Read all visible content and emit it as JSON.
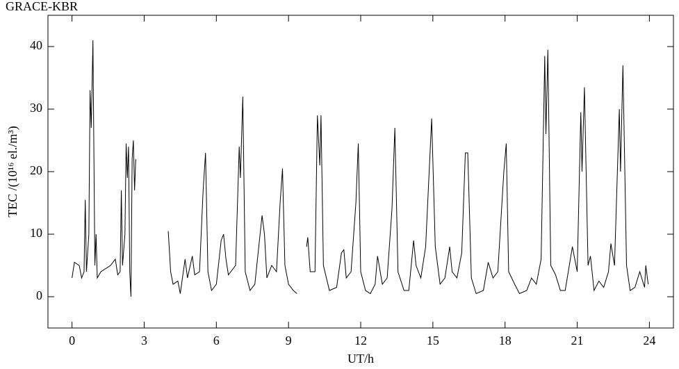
{
  "chart_data": {
    "type": "line",
    "title": "GRACE-KBR",
    "xlabel": "UT/h",
    "ylabel": "TEC /(10¹⁶ el./m³)",
    "xlim": [
      -1,
      25
    ],
    "ylim": [
      -5,
      45
    ],
    "xticks": [
      0,
      3,
      6,
      9,
      12,
      15,
      18,
      21,
      24
    ],
    "yticks": [
      0,
      10,
      20,
      30,
      40
    ],
    "grid": false,
    "x": [
      0,
      0.1,
      0.3,
      0.4,
      0.5,
      0.55,
      0.6,
      0.7,
      0.75,
      0.8,
      0.87,
      0.95,
      1.0,
      1.05,
      1.2,
      1.4,
      1.6,
      1.8,
      1.9,
      2.0,
      2.05,
      2.1,
      2.2,
      2.25,
      2.3,
      2.35,
      2.4,
      2.45,
      2.5,
      2.55,
      2.6,
      2.65,
      3.3,
      4.0,
      4.1,
      4.2,
      4.4,
      4.5,
      4.7,
      4.8,
      5.0,
      5.1,
      5.3,
      5.45,
      5.55,
      5.65,
      5.8,
      6.0,
      6.2,
      6.3,
      6.4,
      6.5,
      6.8,
      6.95,
      7.0,
      7.1,
      7.2,
      7.4,
      7.6,
      7.9,
      8.0,
      8.1,
      8.3,
      8.5,
      8.65,
      8.75,
      8.85,
      9.0,
      9.2,
      9.35,
      9.6,
      9.75,
      9.8,
      9.9,
      10.1,
      10.2,
      10.3,
      10.35,
      10.45,
      10.7,
      11.0,
      11.2,
      11.3,
      11.4,
      11.6,
      11.8,
      11.9,
      12.0,
      12.2,
      12.4,
      12.6,
      12.7,
      12.9,
      13.1,
      13.3,
      13.42,
      13.55,
      13.8,
      14.0,
      14.2,
      14.3,
      14.5,
      14.7,
      14.95,
      15.1,
      15.3,
      15.5,
      15.7,
      15.8,
      16.0,
      16.2,
      16.35,
      16.45,
      16.6,
      16.8,
      17.1,
      17.3,
      17.5,
      17.7,
      17.95,
      18.05,
      18.15,
      18.4,
      18.6,
      18.9,
      19.1,
      19.3,
      19.5,
      19.65,
      19.7,
      19.78,
      19.9,
      20.1,
      20.3,
      20.5,
      20.8,
      21.0,
      21.15,
      21.2,
      21.3,
      21.45,
      21.55,
      21.7,
      21.9,
      22.1,
      22.3,
      22.4,
      22.55,
      22.75,
      22.8,
      22.9,
      23.05,
      23.2,
      23.4,
      23.6,
      23.8,
      23.85,
      23.95
    ],
    "series": [
      {
        "color": "#000000",
        "values": [
          3,
          5.5,
          5,
          3,
          4,
          15.5,
          4,
          10,
          33,
          27,
          41,
          5,
          10,
          3,
          4,
          4.5,
          5,
          6,
          3.5,
          4,
          17,
          5,
          10,
          24.5,
          19,
          24,
          4,
          0,
          22,
          25,
          17,
          22,
          null,
          10.5,
          4,
          2,
          2.5,
          0.5,
          6,
          3,
          6.5,
          3.5,
          4,
          17,
          23,
          4,
          1,
          2,
          9,
          10,
          6,
          3.5,
          5,
          24,
          19,
          32,
          4,
          1,
          2,
          13,
          10,
          3,
          5,
          4,
          15,
          20.5,
          5,
          2,
          1,
          0.5,
          null,
          8,
          9.5,
          4,
          4,
          29,
          21,
          29,
          5,
          1,
          1.5,
          7,
          7.5,
          3,
          4,
          15,
          24.5,
          4,
          1,
          0.5,
          2,
          6.5,
          2,
          3,
          14,
          27,
          4,
          1,
          1,
          9,
          5,
          3,
          8,
          28.5,
          8,
          2,
          3,
          8,
          4,
          3,
          7,
          23,
          23,
          3,
          0.5,
          1,
          5.5,
          3,
          4,
          20,
          24.5,
          4,
          2,
          0.5,
          1,
          3,
          2,
          6,
          38.5,
          26,
          39.5,
          5,
          3.5,
          1,
          1,
          8,
          4,
          29.5,
          20,
          33.5,
          5,
          6.5,
          1,
          2.5,
          1.5,
          4,
          8.5,
          5,
          30,
          20,
          37,
          5,
          1,
          1.5,
          4,
          1.5,
          5,
          2
        ]
      }
    ]
  }
}
